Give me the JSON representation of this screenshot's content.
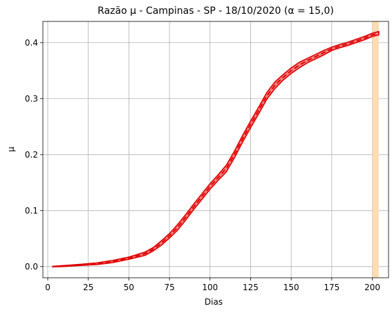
{
  "chart_data": {
    "type": "line",
    "title": "Razão µ - Campinas - SP - 18/10/2020 (α = 15,0)",
    "xlabel": "Dias",
    "ylabel": "µ",
    "xlim": [
      -3,
      210
    ],
    "ylim": [
      -0.02,
      0.438
    ],
    "xticks": [
      0,
      25,
      50,
      75,
      100,
      125,
      150,
      175,
      200
    ],
    "yticks": [
      0.0,
      0.1,
      0.2,
      0.3,
      0.4
    ],
    "xtick_labels": [
      "0",
      "25",
      "50",
      "75",
      "100",
      "125",
      "150",
      "175",
      "200"
    ],
    "ytick_labels": [
      "0.0",
      "0.1",
      "0.2",
      "0.3",
      "0.4"
    ],
    "grid": true,
    "shaded_region": {
      "x": [
        200,
        204
      ],
      "color": "#ffdcb4"
    },
    "series": [
      {
        "style": "band-with-dashed-center",
        "color": "#e00000",
        "band_color": "#f08080",
        "x": [
          3,
          10,
          20,
          30,
          40,
          50,
          60,
          65,
          70,
          75,
          80,
          85,
          90,
          95,
          100,
          105,
          110,
          115,
          120,
          125,
          130,
          135,
          140,
          145,
          150,
          155,
          160,
          165,
          170,
          175,
          180,
          185,
          190,
          195,
          200,
          204
        ],
        "y": [
          0.0,
          0.001,
          0.003,
          0.005,
          0.009,
          0.015,
          0.023,
          0.031,
          0.042,
          0.055,
          0.07,
          0.088,
          0.107,
          0.125,
          0.143,
          0.159,
          0.175,
          0.2,
          0.228,
          0.254,
          0.279,
          0.305,
          0.324,
          0.338,
          0.35,
          0.36,
          0.368,
          0.375,
          0.382,
          0.389,
          0.394,
          0.398,
          0.403,
          0.408,
          0.414,
          0.417
        ],
        "band_halfwidth": [
          0.0005,
          0.0008,
          0.001,
          0.0015,
          0.002,
          0.002,
          0.003,
          0.003,
          0.004,
          0.004,
          0.005,
          0.005,
          0.005,
          0.005,
          0.005,
          0.005,
          0.006,
          0.006,
          0.006,
          0.006,
          0.006,
          0.006,
          0.006,
          0.005,
          0.005,
          0.005,
          0.004,
          0.004,
          0.004,
          0.003,
          0.003,
          0.003,
          0.003,
          0.003,
          0.003,
          0.003
        ]
      }
    ]
  }
}
